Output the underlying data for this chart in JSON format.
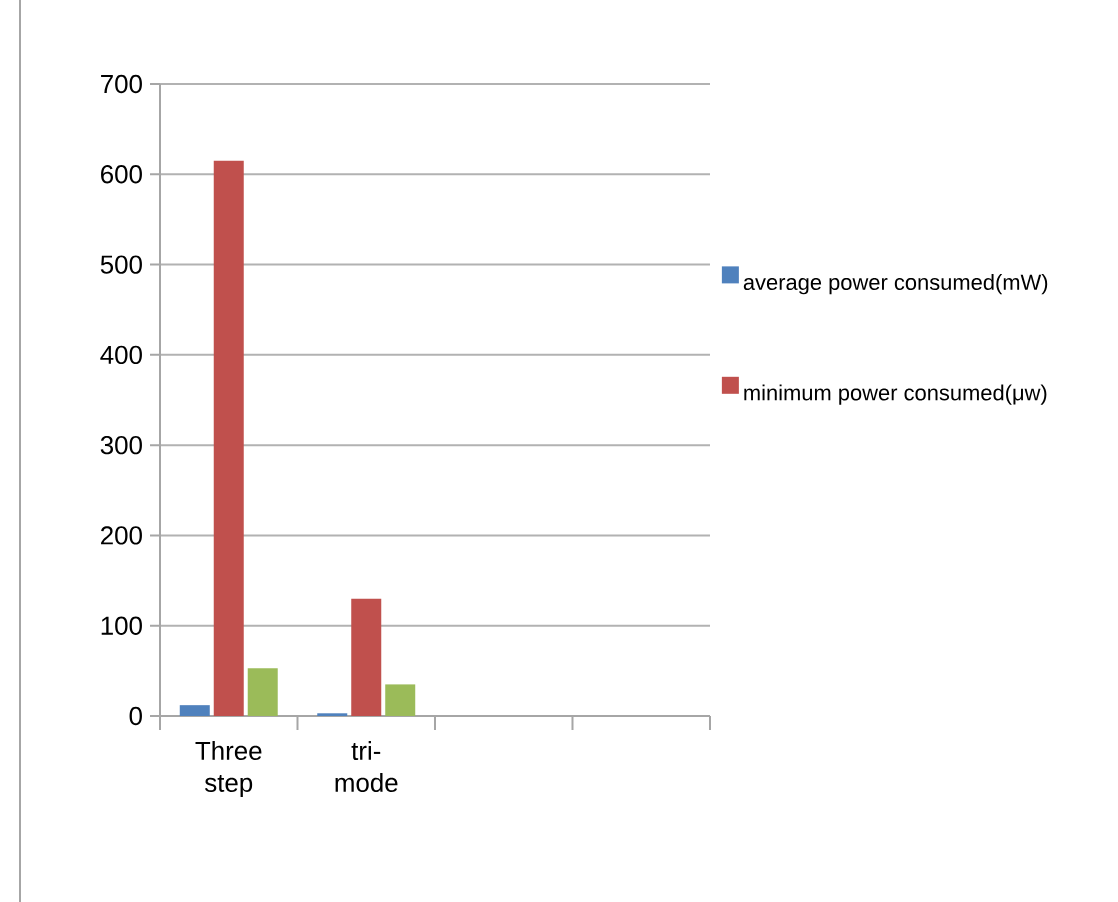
{
  "chart_data": {
    "type": "bar",
    "categories": [
      "Three step",
      "tri-mode",
      null,
      null
    ],
    "series": [
      {
        "name": "average power consumed(mW)",
        "color": "#4f81bd",
        "values": [
          12,
          3,
          null,
          null
        ]
      },
      {
        "name": "minimum power consumed(μw)",
        "color": "#c0504d",
        "values": [
          615,
          130,
          null,
          null
        ]
      },
      {
        "color": "#9bbb59",
        "values": [
          53,
          35,
          null,
          null
        ]
      }
    ],
    "ylim": [
      0,
      700
    ],
    "yticks": [
      0,
      100,
      200,
      300,
      400,
      500,
      600,
      700
    ],
    "grid": "y",
    "legend": "right"
  }
}
